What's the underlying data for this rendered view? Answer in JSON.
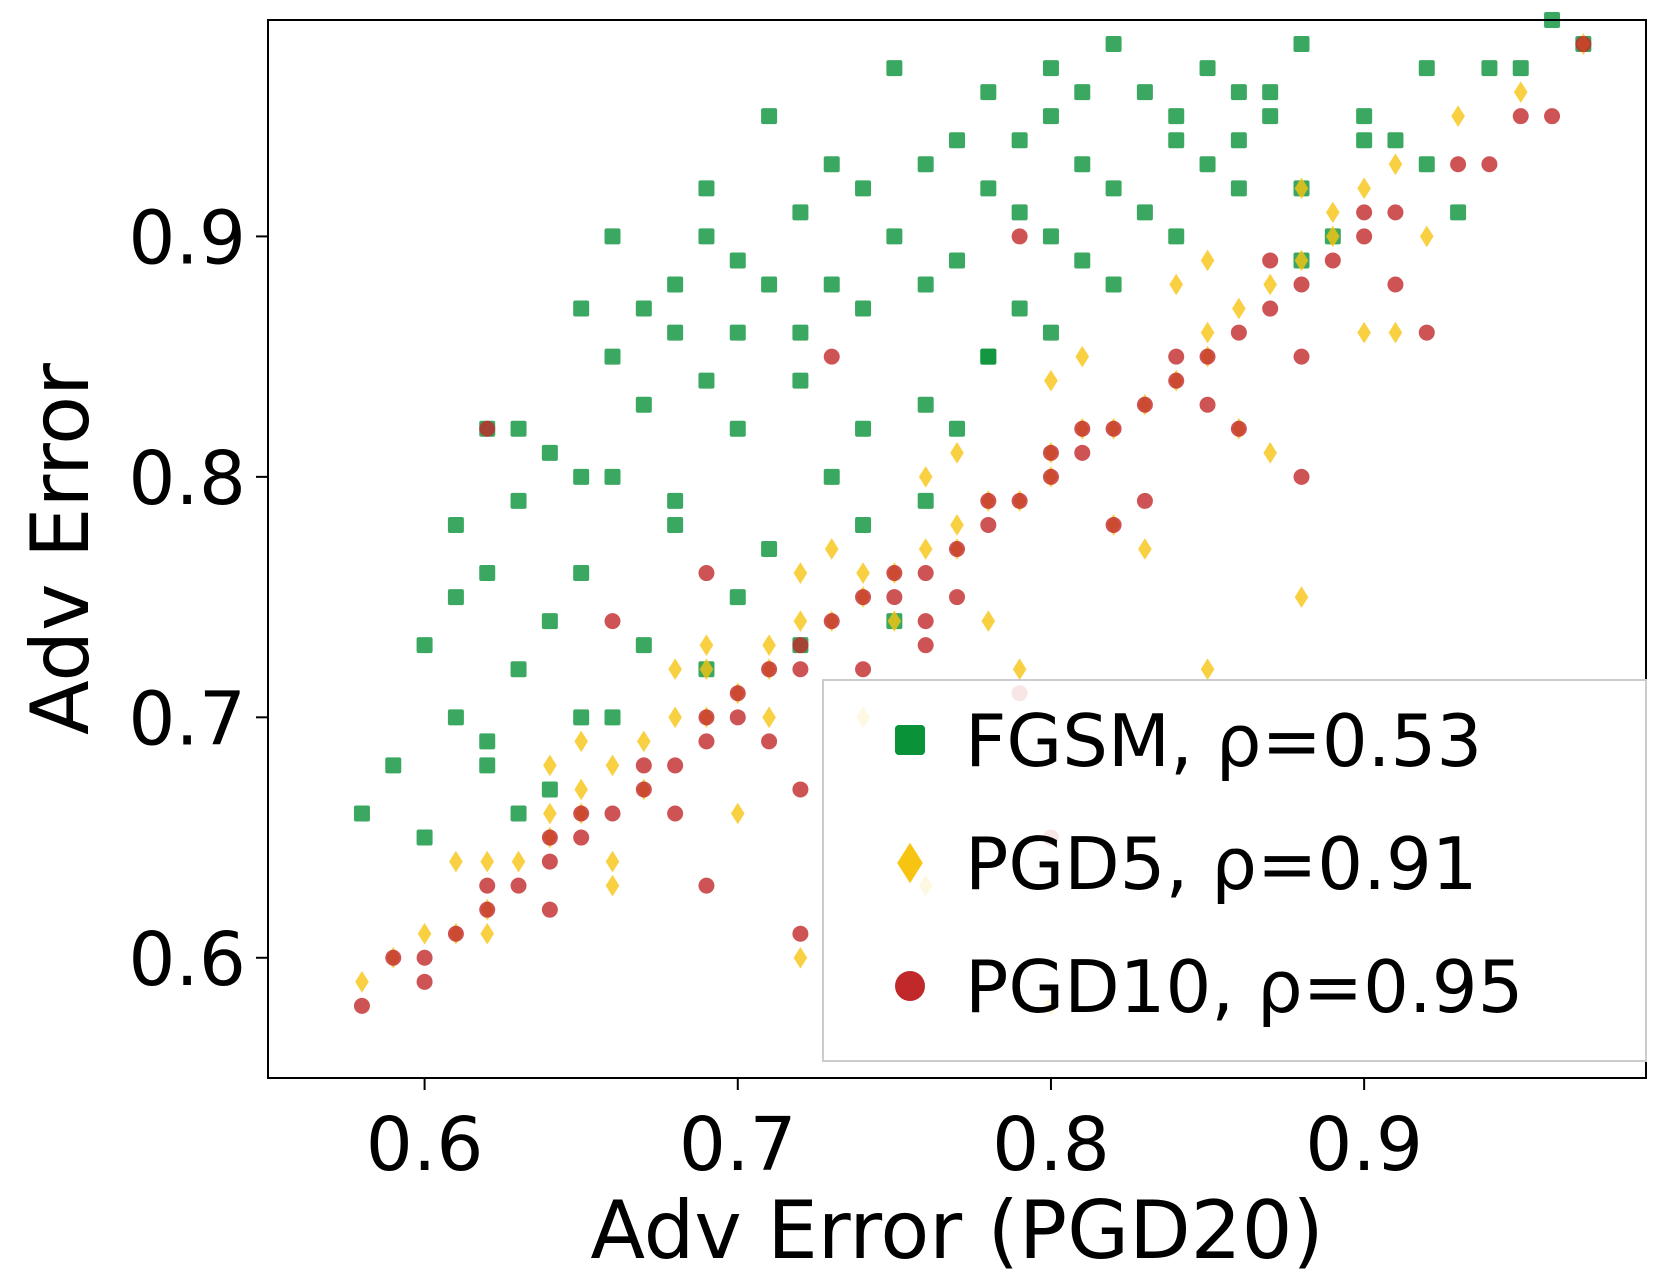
{
  "chart_data": {
    "type": "scatter",
    "title": "",
    "xlabel": "Adv Error (PGD20)",
    "ylabel": "Adv Error",
    "xlim": [
      0.55,
      0.99
    ],
    "ylim": [
      0.55,
      0.99
    ],
    "xticks": [
      0.6,
      0.7,
      0.8,
      0.9
    ],
    "yticks": [
      0.6,
      0.7,
      0.8,
      0.9
    ],
    "xtick_labels": [
      "0.6",
      "0.7",
      "0.8",
      "0.9"
    ],
    "ytick_labels": [
      "0.6",
      "0.7",
      "0.8",
      "0.9"
    ],
    "grid": false,
    "legend_position": "lower-right",
    "series": [
      {
        "name": "FGSM",
        "label": "FGSM, ρ=0.53",
        "rho": 0.53,
        "color": "#0a9239",
        "marker": "square",
        "x": [
          0.58,
          0.59,
          0.6,
          0.6,
          0.61,
          0.61,
          0.62,
          0.62,
          0.62,
          0.63,
          0.63,
          0.63,
          0.64,
          0.64,
          0.65,
          0.65,
          0.65,
          0.66,
          0.66,
          0.67,
          0.67,
          0.68,
          0.68,
          0.69,
          0.69,
          0.69,
          0.7,
          0.7,
          0.71,
          0.71,
          0.72,
          0.72,
          0.73,
          0.73,
          0.74,
          0.74,
          0.75,
          0.75,
          0.76,
          0.76,
          0.77,
          0.77,
          0.78,
          0.78,
          0.79,
          0.79,
          0.8,
          0.8,
          0.81,
          0.81,
          0.82,
          0.83,
          0.84,
          0.85,
          0.86,
          0.87,
          0.88,
          0.9,
          0.92,
          0.94,
          0.96,
          0.97,
          0.61,
          0.64,
          0.66,
          0.68,
          0.7,
          0.72,
          0.74,
          0.76,
          0.78,
          0.8,
          0.82,
          0.84,
          0.86,
          0.88,
          0.9,
          0.93,
          0.95,
          0.62,
          0.65,
          0.67,
          0.69,
          0.71,
          0.73,
          0.75,
          0.77,
          0.79,
          0.81,
          0.83,
          0.85,
          0.87,
          0.89,
          0.91,
          0.63,
          0.66,
          0.68,
          0.7,
          0.72,
          0.74,
          0.76,
          0.78,
          0.8,
          0.82,
          0.84,
          0.86,
          0.88,
          0.92
        ],
        "y": [
          0.66,
          0.68,
          0.65,
          0.73,
          0.7,
          0.75,
          0.82,
          0.76,
          0.68,
          0.79,
          0.82,
          0.72,
          0.74,
          0.67,
          0.87,
          0.8,
          0.76,
          0.85,
          0.9,
          0.83,
          0.87,
          0.86,
          0.88,
          0.84,
          0.9,
          0.92,
          0.86,
          0.89,
          0.95,
          0.88,
          0.91,
          0.86,
          0.93,
          0.88,
          0.92,
          0.87,
          0.97,
          0.9,
          0.88,
          0.93,
          0.94,
          0.89,
          0.96,
          0.92,
          0.91,
          0.94,
          0.95,
          0.97,
          0.96,
          0.93,
          0.98,
          0.96,
          0.95,
          0.97,
          0.94,
          0.96,
          0.98,
          0.95,
          0.93,
          0.97,
          0.99,
          0.98,
          0.78,
          0.81,
          0.8,
          0.79,
          0.82,
          0.84,
          0.78,
          0.83,
          0.85,
          0.86,
          0.88,
          0.9,
          0.92,
          0.89,
          0.94,
          0.91,
          0.97,
          0.69,
          0.7,
          0.73,
          0.72,
          0.77,
          0.8,
          0.74,
          0.82,
          0.87,
          0.89,
          0.91,
          0.93,
          0.95,
          0.9,
          0.94,
          0.66,
          0.7,
          0.78,
          0.75,
          0.73,
          0.82,
          0.79,
          0.85,
          0.9,
          0.92,
          0.94,
          0.96,
          0.92,
          0.97
        ]
      },
      {
        "name": "PGD5",
        "label": "PGD5, ρ=0.91",
        "rho": 0.91,
        "color": "#f7c411",
        "marker": "diamond",
        "x": [
          0.58,
          0.59,
          0.6,
          0.61,
          0.62,
          0.62,
          0.63,
          0.64,
          0.64,
          0.65,
          0.65,
          0.66,
          0.67,
          0.67,
          0.68,
          0.69,
          0.69,
          0.7,
          0.71,
          0.71,
          0.72,
          0.73,
          0.74,
          0.74,
          0.75,
          0.76,
          0.77,
          0.77,
          0.78,
          0.79,
          0.8,
          0.8,
          0.81,
          0.82,
          0.83,
          0.84,
          0.85,
          0.85,
          0.86,
          0.87,
          0.88,
          0.89,
          0.9,
          0.91,
          0.93,
          0.95,
          0.97,
          0.62,
          0.66,
          0.7,
          0.74,
          0.78,
          0.82,
          0.86,
          0.9,
          0.64,
          0.68,
          0.72,
          0.76,
          0.8,
          0.84,
          0.88,
          0.92,
          0.61,
          0.65,
          0.69,
          0.73,
          0.77,
          0.81,
          0.85,
          0.89,
          0.66,
          0.71,
          0.75,
          0.79,
          0.83,
          0.87,
          0.91,
          0.72,
          0.76,
          0.8,
          0.85,
          0.88
        ],
        "y": [
          0.59,
          0.6,
          0.61,
          0.61,
          0.62,
          0.64,
          0.64,
          0.65,
          0.66,
          0.66,
          0.67,
          0.68,
          0.69,
          0.67,
          0.7,
          0.7,
          0.72,
          0.71,
          0.72,
          0.73,
          0.74,
          0.74,
          0.75,
          0.76,
          0.76,
          0.77,
          0.78,
          0.77,
          0.79,
          0.79,
          0.8,
          0.81,
          0.82,
          0.82,
          0.83,
          0.84,
          0.85,
          0.86,
          0.87,
          0.88,
          0.89,
          0.9,
          0.92,
          0.93,
          0.95,
          0.96,
          0.98,
          0.61,
          0.63,
          0.66,
          0.7,
          0.74,
          0.78,
          0.82,
          0.86,
          0.68,
          0.72,
          0.76,
          0.8,
          0.84,
          0.88,
          0.92,
          0.9,
          0.64,
          0.69,
          0.73,
          0.77,
          0.81,
          0.85,
          0.89,
          0.91,
          0.64,
          0.7,
          0.74,
          0.72,
          0.77,
          0.81,
          0.86,
          0.6,
          0.63,
          0.58,
          0.72,
          0.75
        ]
      },
      {
        "name": "PGD10",
        "label": "PGD10, ρ=0.95",
        "rho": 0.95,
        "color": "#c0282a",
        "marker": "circle",
        "x": [
          0.58,
          0.59,
          0.6,
          0.6,
          0.61,
          0.62,
          0.62,
          0.63,
          0.64,
          0.64,
          0.65,
          0.65,
          0.66,
          0.67,
          0.67,
          0.68,
          0.69,
          0.69,
          0.7,
          0.7,
          0.71,
          0.72,
          0.72,
          0.73,
          0.74,
          0.75,
          0.75,
          0.76,
          0.77,
          0.78,
          0.78,
          0.79,
          0.8,
          0.8,
          0.81,
          0.82,
          0.83,
          0.84,
          0.85,
          0.86,
          0.87,
          0.88,
          0.89,
          0.9,
          0.91,
          0.93,
          0.95,
          0.97,
          0.62,
          0.66,
          0.69,
          0.72,
          0.76,
          0.79,
          0.82,
          0.85,
          0.88,
          0.91,
          0.64,
          0.68,
          0.71,
          0.74,
          0.77,
          0.81,
          0.84,
          0.87,
          0.9,
          0.92,
          0.94,
          0.96,
          0.69,
          0.73,
          0.79,
          0.83,
          0.86,
          0.88,
          0.8,
          0.76,
          0.72
        ],
        "y": [
          0.58,
          0.6,
          0.59,
          0.6,
          0.61,
          0.62,
          0.63,
          0.63,
          0.64,
          0.65,
          0.65,
          0.66,
          0.66,
          0.67,
          0.68,
          0.68,
          0.69,
          0.7,
          0.7,
          0.71,
          0.72,
          0.72,
          0.73,
          0.74,
          0.75,
          0.75,
          0.76,
          0.76,
          0.77,
          0.78,
          0.79,
          0.79,
          0.8,
          0.81,
          0.81,
          0.82,
          0.83,
          0.84,
          0.85,
          0.86,
          0.87,
          0.88,
          0.89,
          0.9,
          0.91,
          0.93,
          0.95,
          0.98,
          0.82,
          0.74,
          0.63,
          0.67,
          0.73,
          0.71,
          0.78,
          0.83,
          0.8,
          0.88,
          0.62,
          0.66,
          0.69,
          0.72,
          0.75,
          0.82,
          0.85,
          0.89,
          0.91,
          0.86,
          0.93,
          0.95,
          0.76,
          0.85,
          0.9,
          0.79,
          0.82,
          0.85,
          0.65,
          0.74,
          0.61
        ]
      }
    ]
  }
}
